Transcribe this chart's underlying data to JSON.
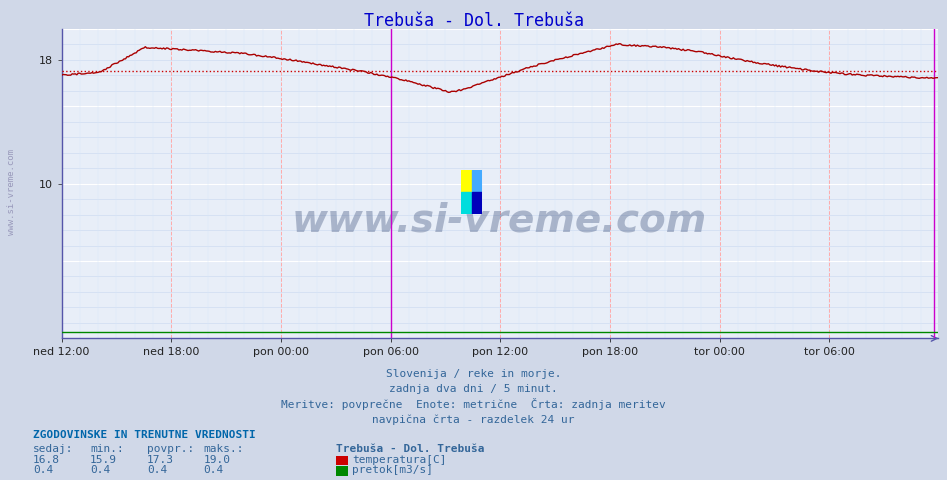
{
  "title": "Trebuša - Dol. Trebuša",
  "title_color": "#0000cc",
  "bg_color": "#d0d8e8",
  "plot_bg_color": "#e8eef8",
  "temp_color": "#aa0000",
  "pretok_color": "#008800",
  "avg_line_color": "#cc0000",
  "avg_value": 17.3,
  "y_min": 0,
  "y_max": 20,
  "x_labels": [
    "ned 12:00",
    "ned 18:00",
    "pon 00:00",
    "pon 06:00",
    "pon 12:00",
    "pon 18:00",
    "tor 00:00",
    "tor 06:00"
  ],
  "n_points": 576,
  "watermark": "www.si-vreme.com",
  "footer_line1": "Slovenija / reke in morje.",
  "footer_line2": "zadnja dva dni / 5 minut.",
  "footer_line3": "Meritve: povprečne  Enote: metrične  Črta: zadnja meritev",
  "footer_line4": "navpična črta - razdelek 24 ur",
  "stat_title": "ZGODOVINSKE IN TRENUTNE VREDNOSTI",
  "stat_headers": [
    "sedaj:",
    "min.:",
    "povpr.:",
    "maks.:"
  ],
  "stat_temp": [
    16.8,
    15.9,
    17.3,
    19.0
  ],
  "stat_pretok": [
    0.4,
    0.4,
    0.4,
    0.4
  ],
  "legend_station": "Trebuša - Dol. Trebuša",
  "legend_temp": "temperatura[C]",
  "legend_pretok": "pretok[m3/s]",
  "ylabel_text": "www.si-vreme.com",
  "ctrl_points": [
    [
      0,
      17.0
    ],
    [
      25,
      17.2
    ],
    [
      55,
      18.8
    ],
    [
      90,
      18.6
    ],
    [
      120,
      18.4
    ],
    [
      150,
      18.0
    ],
    [
      175,
      17.6
    ],
    [
      200,
      17.2
    ],
    [
      220,
      16.8
    ],
    [
      240,
      16.3
    ],
    [
      255,
      15.9
    ],
    [
      265,
      16.1
    ],
    [
      285,
      16.8
    ],
    [
      310,
      17.6
    ],
    [
      340,
      18.4
    ],
    [
      365,
      19.0
    ],
    [
      395,
      18.8
    ],
    [
      420,
      18.5
    ],
    [
      445,
      18.0
    ],
    [
      470,
      17.6
    ],
    [
      500,
      17.2
    ],
    [
      525,
      17.0
    ],
    [
      550,
      16.9
    ],
    [
      575,
      16.8
    ]
  ]
}
